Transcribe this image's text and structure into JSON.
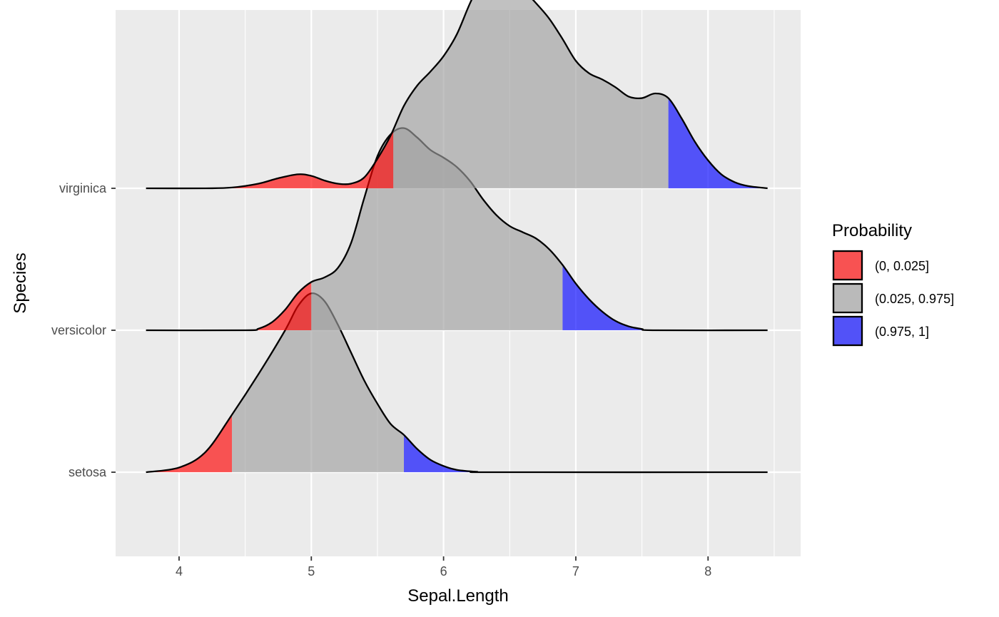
{
  "chart_data": {
    "type": "ridgeline-density",
    "xlabel": "Sepal.Length",
    "ylabel": "Species",
    "xlim": [
      3.52,
      8.7
    ],
    "x_ticks": [
      4,
      5,
      6,
      7,
      8
    ],
    "x_minor_ticks": [
      4.5,
      5.5,
      6.5,
      7.5,
      8.5
    ],
    "grid": true,
    "categories": [
      "setosa",
      "versicolor",
      "virginica"
    ],
    "series": [
      {
        "name": "setosa",
        "lower_quantile_x": 4.4,
        "upper_quantile_x": 5.7,
        "density": [
          [
            3.75,
            0.0
          ],
          [
            4.0,
            0.03
          ],
          [
            4.2,
            0.13
          ],
          [
            4.4,
            0.37
          ],
          [
            4.6,
            0.63
          ],
          [
            4.8,
            0.91
          ],
          [
            4.9,
            1.07
          ],
          [
            5.0,
            1.15
          ],
          [
            5.1,
            1.1
          ],
          [
            5.2,
            0.95
          ],
          [
            5.3,
            0.77
          ],
          [
            5.4,
            0.59
          ],
          [
            5.5,
            0.44
          ],
          [
            5.6,
            0.31
          ],
          [
            5.7,
            0.24
          ],
          [
            5.8,
            0.15
          ],
          [
            5.9,
            0.08
          ],
          [
            6.0,
            0.04
          ],
          [
            6.1,
            0.015
          ],
          [
            6.25,
            0.003
          ],
          [
            6.4,
            0.0
          ],
          [
            8.45,
            0.0
          ]
        ]
      },
      {
        "name": "versicolor",
        "lower_quantile_x": 5.0,
        "upper_quantile_x": 6.9,
        "density": [
          [
            3.75,
            0.0
          ],
          [
            4.5,
            0.0
          ],
          [
            4.6,
            0.01
          ],
          [
            4.7,
            0.05
          ],
          [
            4.8,
            0.13
          ],
          [
            4.9,
            0.24
          ],
          [
            5.0,
            0.31
          ],
          [
            5.1,
            0.34
          ],
          [
            5.2,
            0.4
          ],
          [
            5.3,
            0.56
          ],
          [
            5.4,
            0.85
          ],
          [
            5.5,
            1.12
          ],
          [
            5.6,
            1.26
          ],
          [
            5.7,
            1.3
          ],
          [
            5.8,
            1.24
          ],
          [
            5.9,
            1.16
          ],
          [
            6.0,
            1.11
          ],
          [
            6.1,
            1.05
          ],
          [
            6.2,
            0.96
          ],
          [
            6.3,
            0.84
          ],
          [
            6.4,
            0.74
          ],
          [
            6.5,
            0.67
          ],
          [
            6.6,
            0.63
          ],
          [
            6.7,
            0.59
          ],
          [
            6.8,
            0.52
          ],
          [
            6.9,
            0.42
          ],
          [
            7.0,
            0.3
          ],
          [
            7.1,
            0.2
          ],
          [
            7.2,
            0.12
          ],
          [
            7.3,
            0.06
          ],
          [
            7.4,
            0.025
          ],
          [
            7.5,
            0.008
          ],
          [
            7.6,
            0.0
          ],
          [
            8.45,
            0.0
          ]
        ]
      },
      {
        "name": "virginica",
        "lower_quantile_x": 5.62,
        "upper_quantile_x": 7.7,
        "density": [
          [
            3.75,
            0.0
          ],
          [
            4.2,
            0.0
          ],
          [
            4.4,
            0.005
          ],
          [
            4.6,
            0.03
          ],
          [
            4.75,
            0.065
          ],
          [
            4.9,
            0.09
          ],
          [
            5.0,
            0.08
          ],
          [
            5.1,
            0.05
          ],
          [
            5.2,
            0.03
          ],
          [
            5.3,
            0.03
          ],
          [
            5.4,
            0.07
          ],
          [
            5.5,
            0.19
          ],
          [
            5.6,
            0.34
          ],
          [
            5.7,
            0.53
          ],
          [
            5.8,
            0.66
          ],
          [
            5.9,
            0.75
          ],
          [
            6.0,
            0.85
          ],
          [
            6.1,
            0.99
          ],
          [
            6.2,
            1.19
          ],
          [
            6.3,
            1.36
          ],
          [
            6.4,
            1.42
          ],
          [
            6.5,
            1.37
          ],
          [
            6.6,
            1.28
          ],
          [
            6.7,
            1.19
          ],
          [
            6.8,
            1.09
          ],
          [
            6.9,
            0.96
          ],
          [
            7.0,
            0.82
          ],
          [
            7.1,
            0.74
          ],
          [
            7.2,
            0.7
          ],
          [
            7.3,
            0.65
          ],
          [
            7.4,
            0.59
          ],
          [
            7.5,
            0.58
          ],
          [
            7.6,
            0.61
          ],
          [
            7.7,
            0.58
          ],
          [
            7.8,
            0.45
          ],
          [
            7.9,
            0.3
          ],
          [
            8.0,
            0.18
          ],
          [
            8.1,
            0.09
          ],
          [
            8.2,
            0.04
          ],
          [
            8.3,
            0.015
          ],
          [
            8.45,
            0.0
          ]
        ]
      }
    ],
    "legend": {
      "title": "Probability",
      "placement": "right",
      "entries": [
        {
          "label": "(0, 0.025]",
          "color": "#ff0000"
        },
        {
          "label": "(0.025, 0.975]",
          "color": "#a0a0a0"
        },
        {
          "label": "(0.975, 1]",
          "color": "#0000ff"
        }
      ]
    },
    "fill_opacity": 0.65,
    "panel_background": "#ebebeb",
    "grid_color": "#ffffff"
  }
}
